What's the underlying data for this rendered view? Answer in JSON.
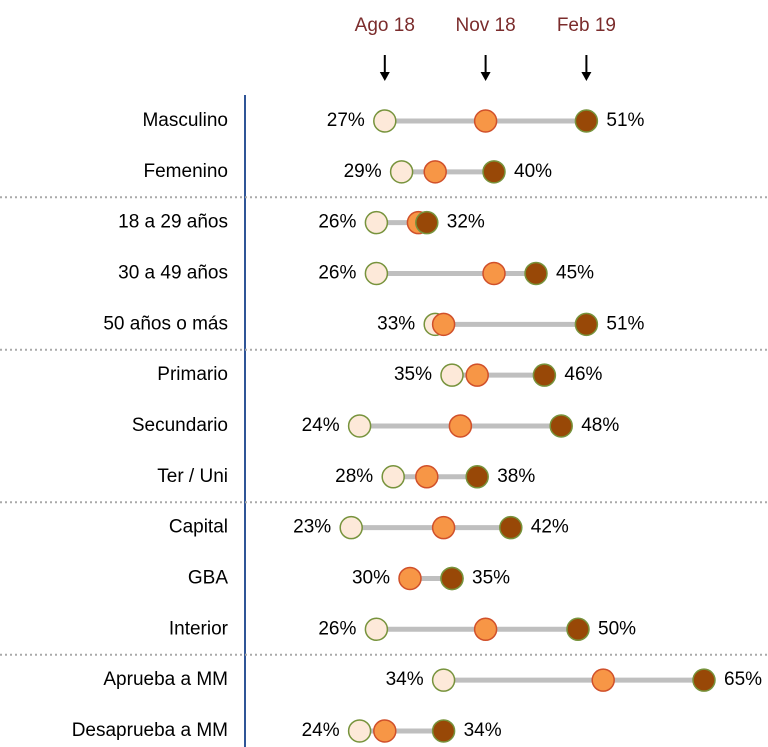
{
  "chart_data": {
    "type": "dumbbell",
    "categories": [
      "Masculino",
      "Femenino",
      "18 a 29 años",
      "30 a 49 años",
      "50 años o más",
      "Primario",
      "Secundario",
      "Ter / Uni",
      "Capital",
      "GBA",
      "Interior",
      "Aprueba a MM",
      "Desaprueba a MM"
    ],
    "series": [
      {
        "name": "Ago 18",
        "color": "#fde9d9",
        "stroke": "#77933c",
        "values": [
          27,
          29,
          26,
          26,
          33,
          35,
          24,
          28,
          23,
          35,
          26,
          34,
          24
        ],
        "value_labels": [
          "27%",
          "29%",
          "26%",
          "26%",
          "33%",
          "35%",
          "24%",
          "28%",
          "23%",
          null,
          "26%",
          "34%",
          "24%"
        ]
      },
      {
        "name": "Nov 18",
        "color": "#f79646",
        "stroke": "#d0502a",
        "values": [
          39,
          33,
          31,
          40,
          34,
          38,
          36,
          32,
          34,
          30,
          39,
          53,
          27
        ],
        "value_labels": [
          null,
          null,
          null,
          null,
          null,
          null,
          null,
          null,
          null,
          "30%",
          null,
          null,
          null
        ]
      },
      {
        "name": "Feb 19",
        "color": "#984807",
        "stroke": "#77933c",
        "values": [
          51,
          40,
          32,
          45,
          51,
          46,
          48,
          38,
          42,
          35,
          50,
          65,
          34
        ],
        "value_labels": [
          "51%",
          "40%",
          "32%",
          "45%",
          "51%",
          "46%",
          "48%",
          "38%",
          "42%",
          "35%",
          "50%",
          "65%",
          "34%"
        ]
      }
    ]
  }
}
